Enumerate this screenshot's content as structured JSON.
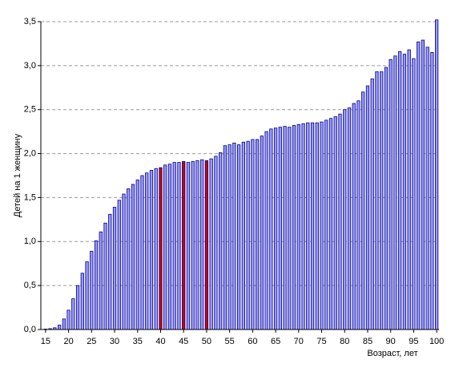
{
  "chart_data": {
    "type": "bar",
    "y_label": "Детей на 1 женщину",
    "x_label": "Возраст, лет",
    "categories": [
      "15",
      null,
      null,
      null,
      null,
      "20",
      null,
      null,
      null,
      null,
      "25",
      null,
      null,
      null,
      null,
      "30",
      null,
      null,
      null,
      null,
      "35",
      null,
      null,
      null,
      null,
      "40",
      null,
      null,
      null,
      null,
      "45",
      null,
      null,
      null,
      null,
      "50",
      null,
      null,
      null,
      null,
      "55",
      null,
      null,
      null,
      null,
      "60",
      null,
      null,
      null,
      null,
      "65",
      null,
      null,
      null,
      null,
      "70",
      null,
      null,
      null,
      null,
      "75",
      null,
      null,
      null,
      null,
      "80",
      null,
      null,
      null,
      null,
      "85",
      null,
      null,
      null,
      null,
      "90",
      null,
      null,
      null,
      null,
      "95",
      null,
      null,
      null,
      null,
      "100"
    ],
    "values": [
      0.005,
      0.01,
      0.02,
      0.05,
      0.12,
      0.22,
      0.35,
      0.5,
      0.64,
      0.77,
      0.89,
      1.01,
      1.11,
      1.21,
      1.31,
      1.39,
      1.47,
      1.54,
      1.6,
      1.65,
      1.7,
      1.75,
      1.78,
      1.81,
      1.83,
      1.84,
      1.87,
      1.88,
      1.9,
      1.9,
      1.91,
      1.9,
      1.91,
      1.92,
      1.93,
      1.92,
      1.94,
      1.97,
      2.01,
      2.09,
      2.1,
      2.12,
      2.1,
      2.13,
      2.14,
      2.16,
      2.16,
      2.2,
      2.25,
      2.28,
      2.29,
      2.3,
      2.31,
      2.3,
      2.32,
      2.33,
      2.34,
      2.35,
      2.35,
      2.35,
      2.36,
      2.38,
      2.4,
      2.42,
      2.45,
      2.5,
      2.52,
      2.57,
      2.6,
      2.7,
      2.77,
      2.85,
      2.93,
      2.93,
      2.98,
      3.07,
      3.11,
      3.16,
      3.13,
      3.18,
      3.08,
      3.27,
      3.29,
      3.21,
      3.15,
      3.52
    ],
    "color": "#9999ff",
    "highlight_color": "#cc0000",
    "highlighted_categories": [
      "40",
      "45",
      "50"
    ],
    "ylim": [
      0,
      3.5
    ],
    "yticks": [
      {
        "value": 0,
        "label": "0,0"
      },
      {
        "value": 0.5,
        "label": "0,5"
      },
      {
        "value": 1,
        "label": "1,0"
      },
      {
        "value": 1.5,
        "label": "1,5"
      },
      {
        "value": 2,
        "label": "2,0"
      },
      {
        "value": 2.5,
        "label": "2,5"
      },
      {
        "value": 3,
        "label": "3,0"
      },
      {
        "value": 3.5,
        "label": "3,5"
      }
    ],
    "grid": true
  }
}
